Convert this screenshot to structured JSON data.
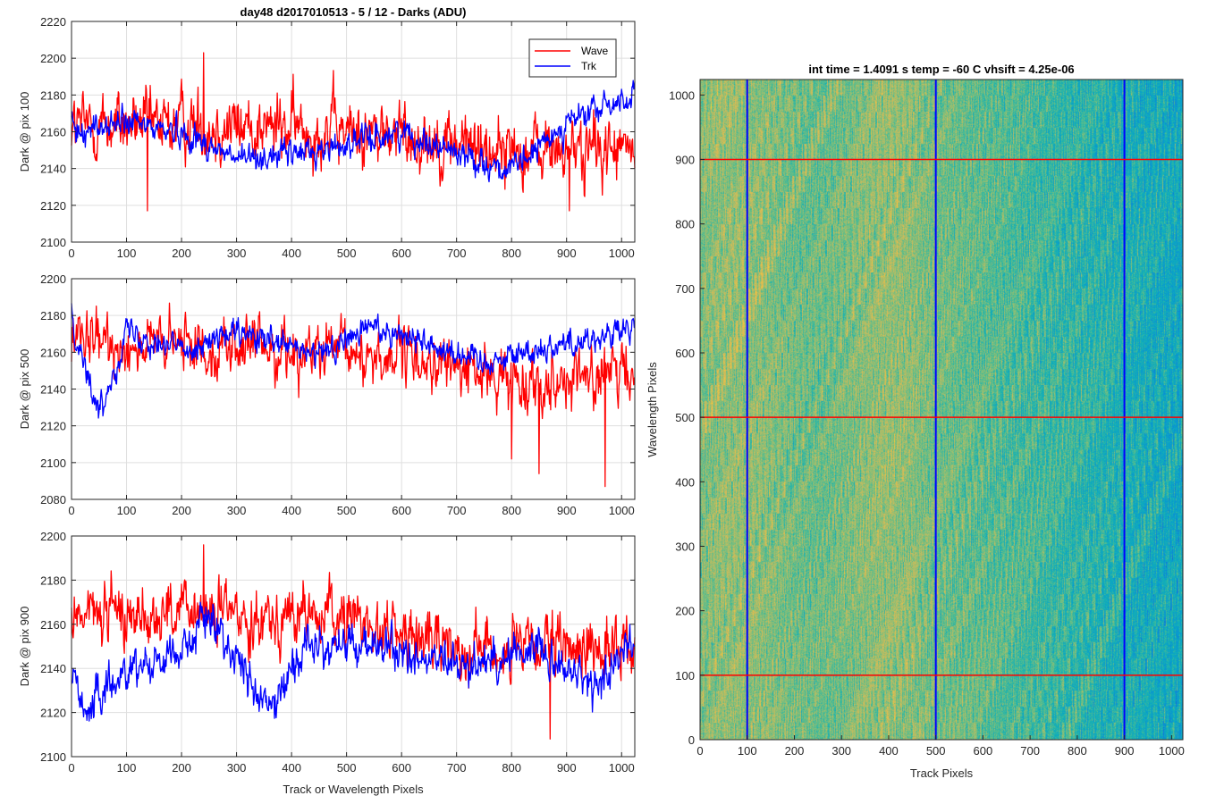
{
  "chart_data": [
    {
      "type": "line",
      "title": "day48 d2017010513 - 5 / 12 - Darks (ADU)",
      "xlabel": "",
      "ylabel": "Dark @ pix 100",
      "xlim": [
        0,
        1024
      ],
      "ylim": [
        2100,
        2220
      ],
      "xticks": [
        "0",
        "100",
        "200",
        "300",
        "400",
        "500",
        "600",
        "700",
        "800",
        "900",
        "1000"
      ],
      "yticks": [
        "2100",
        "2120",
        "2140",
        "2160",
        "2180",
        "2200",
        "2220"
      ],
      "grid": true,
      "legend": "top-right",
      "series": [
        {
          "name": "Wave",
          "color": "#ff0000",
          "level": [
            [
              0,
              2163
            ],
            [
              200,
              2164
            ],
            [
              400,
              2162
            ],
            [
              600,
              2158
            ],
            [
              800,
              2150
            ],
            [
              1024,
              2150
            ]
          ],
          "noise": 12,
          "min": 2116,
          "max": 2203,
          "spikes": [
            [
              240,
              2203
            ],
            [
              138,
              2117
            ],
            [
              905,
              2117
            ]
          ]
        },
        {
          "name": "Trk",
          "color": "#0000ff",
          "level": [
            [
              0,
              2160
            ],
            [
              100,
              2165
            ],
            [
              200,
              2160
            ],
            [
              300,
              2145
            ],
            [
              450,
              2150
            ],
            [
              600,
              2160
            ],
            [
              800,
              2138
            ],
            [
              900,
              2165
            ],
            [
              1024,
              2180
            ]
          ],
          "noise": 5,
          "min": 2128,
          "max": 2192,
          "spikes": []
        }
      ]
    },
    {
      "type": "line",
      "title": "",
      "xlabel": "",
      "ylabel": "Dark @ pix 500",
      "xlim": [
        0,
        1024
      ],
      "ylim": [
        2080,
        2200
      ],
      "xticks": [
        "0",
        "100",
        "200",
        "300",
        "400",
        "500",
        "600",
        "700",
        "800",
        "900",
        "1000"
      ],
      "yticks": [
        "2080",
        "2100",
        "2120",
        "2140",
        "2160",
        "2180",
        "2200"
      ],
      "grid": true,
      "series": [
        {
          "name": "Wave",
          "color": "#ff0000",
          "level": [
            [
              0,
              2165
            ],
            [
              300,
              2163
            ],
            [
              600,
              2157
            ],
            [
              800,
              2145
            ],
            [
              1024,
              2148
            ]
          ],
          "noise": 10,
          "min": 2087,
          "max": 2190,
          "spikes": [
            [
              970,
              2087
            ],
            [
              850,
              2094
            ],
            [
              800,
              2102
            ]
          ]
        },
        {
          "name": "Trk",
          "color": "#0000ff",
          "level": [
            [
              0,
              2180
            ],
            [
              50,
              2125
            ],
            [
              100,
              2172
            ],
            [
              200,
              2162
            ],
            [
              300,
              2170
            ],
            [
              450,
              2158
            ],
            [
              550,
              2175
            ],
            [
              750,
              2155
            ],
            [
              850,
              2162
            ],
            [
              1024,
              2172
            ]
          ],
          "noise": 5,
          "min": 2122,
          "max": 2191,
          "spikes": []
        }
      ]
    },
    {
      "type": "line",
      "title": "",
      "xlabel": "Track or Wavelength Pixels",
      "ylabel": "Dark @ pix 900",
      "xlim": [
        0,
        1024
      ],
      "ylim": [
        2100,
        2200
      ],
      "xticks": [
        "0",
        "100",
        "200",
        "300",
        "400",
        "500",
        "600",
        "700",
        "800",
        "900",
        "1000"
      ],
      "yticks": [
        "2100",
        "2120",
        "2140",
        "2160",
        "2180",
        "2200"
      ],
      "grid": true,
      "series": [
        {
          "name": "Wave",
          "color": "#ff0000",
          "level": [
            [
              0,
              2165
            ],
            [
              300,
              2165
            ],
            [
              500,
              2163
            ],
            [
              650,
              2152
            ],
            [
              800,
              2148
            ],
            [
              1024,
              2150
            ]
          ],
          "noise": 9,
          "min": 2108,
          "max": 2196,
          "spikes": [
            [
              240,
              2196
            ],
            [
              870,
              2108
            ]
          ]
        },
        {
          "name": "Trk",
          "color": "#0000ff",
          "level": [
            [
              0,
              2140
            ],
            [
              30,
              2120
            ],
            [
              100,
              2140
            ],
            [
              200,
              2148
            ],
            [
              250,
              2165
            ],
            [
              360,
              2120
            ],
            [
              420,
              2150
            ],
            [
              550,
              2150
            ],
            [
              700,
              2140
            ],
            [
              850,
              2150
            ],
            [
              950,
              2130
            ],
            [
              1024,
              2155
            ]
          ],
          "noise": 6,
          "min": 2112,
          "max": 2170,
          "spikes": []
        }
      ]
    },
    {
      "type": "heatmap",
      "title": "int time = 1.4091 s    temp = -60 C    vhsift = 4.25e-06",
      "xlabel": "Track Pixels",
      "ylabel": "Wavelength Pixels",
      "xlim": [
        0,
        1024
      ],
      "ylim": [
        0,
        1024
      ],
      "xticks": [
        "0",
        "100",
        "200",
        "300",
        "400",
        "500",
        "600",
        "700",
        "800",
        "900",
        "1000"
      ],
      "yticks": [
        "0",
        "100",
        "200",
        "300",
        "400",
        "500",
        "600",
        "700",
        "800",
        "900",
        "1000"
      ],
      "colormap": "parula",
      "vertical_lines": {
        "color": "#0000ff",
        "x": [
          100,
          500,
          900
        ]
      },
      "horizontal_lines": {
        "color": "#ff0000",
        "y": [
          100,
          500,
          900
        ]
      }
    }
  ]
}
